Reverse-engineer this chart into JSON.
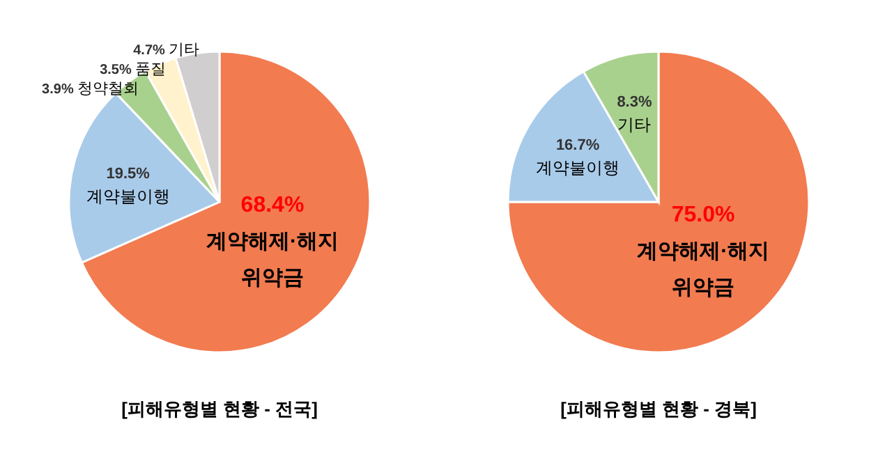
{
  "chart_data": [
    {
      "type": "pie",
      "title": "[피해유형별 현황 - 전국]",
      "categories": [
        "계약해제·해지 위약금",
        "계약불이행",
        "청약철회",
        "품질",
        "기타"
      ],
      "values": [
        68.4,
        19.5,
        3.9,
        3.5,
        4.7
      ],
      "value_labels": [
        "68.4%",
        "19.5%",
        "3.9%",
        "3.5%",
        "4.7%"
      ],
      "colors": [
        "#f27b50",
        "#a9cbea",
        "#a9d18e",
        "#fff2cc",
        "#d0cece"
      ]
    },
    {
      "type": "pie",
      "title": "[피해유형별 현황 - 경북]",
      "categories": [
        "계약해제·해지 위약금",
        "계약불이행",
        "기타"
      ],
      "values": [
        75.0,
        16.7,
        8.3
      ],
      "value_labels": [
        "75.0%",
        "16.7%",
        "8.3%"
      ],
      "colors": [
        "#f27b50",
        "#a9cbea",
        "#a9d18e"
      ]
    }
  ]
}
